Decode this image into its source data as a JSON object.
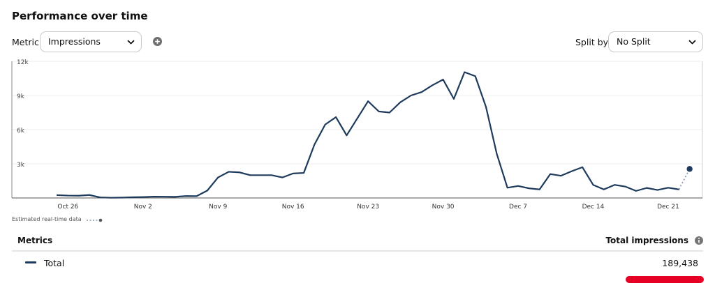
{
  "header": {
    "title": "Performance over time"
  },
  "controls": {
    "metric_label": "Metric",
    "metric_value": "Impressions",
    "split_label": "Split by",
    "split_value": "No Split"
  },
  "chart_data": {
    "type": "line",
    "x_ticks": [
      "Oct 26",
      "Nov 2",
      "Nov 9",
      "Nov 16",
      "Nov 23",
      "Nov 30",
      "Dec 7",
      "Dec 14",
      "Dec 21"
    ],
    "y_ticks": [
      "3k",
      "6k",
      "9k",
      "12k"
    ],
    "ylim": [
      0,
      12000
    ],
    "x_start": "Oct 25",
    "series": [
      {
        "name": "Total",
        "color": "#1e3a5c",
        "values": [
          250,
          210,
          200,
          260,
          50,
          20,
          30,
          60,
          80,
          120,
          110,
          100,
          170,
          160,
          650,
          1800,
          2300,
          2250,
          2000,
          2000,
          2000,
          1800,
          2150,
          2200,
          4700,
          6450,
          7100,
          5500,
          7000,
          8500,
          7600,
          7500,
          8400,
          9000,
          9300,
          9900,
          10400,
          8700,
          11050,
          10700,
          8000,
          3900,
          900,
          1050,
          850,
          750,
          2100,
          1950,
          2350,
          2700,
          1150,
          750,
          1150,
          1000,
          620,
          880,
          700,
          900,
          750
        ]
      }
    ],
    "estimated": {
      "from": 750,
      "to": 2550
    },
    "grid": true
  },
  "legend": {
    "estimated_label": "Estimated real-time data"
  },
  "table": {
    "col_metrics": "Metrics",
    "col_total": "Total impressions",
    "rows": [
      {
        "label": "Total",
        "value": "189,438",
        "color": "#1e3a5c"
      }
    ]
  }
}
